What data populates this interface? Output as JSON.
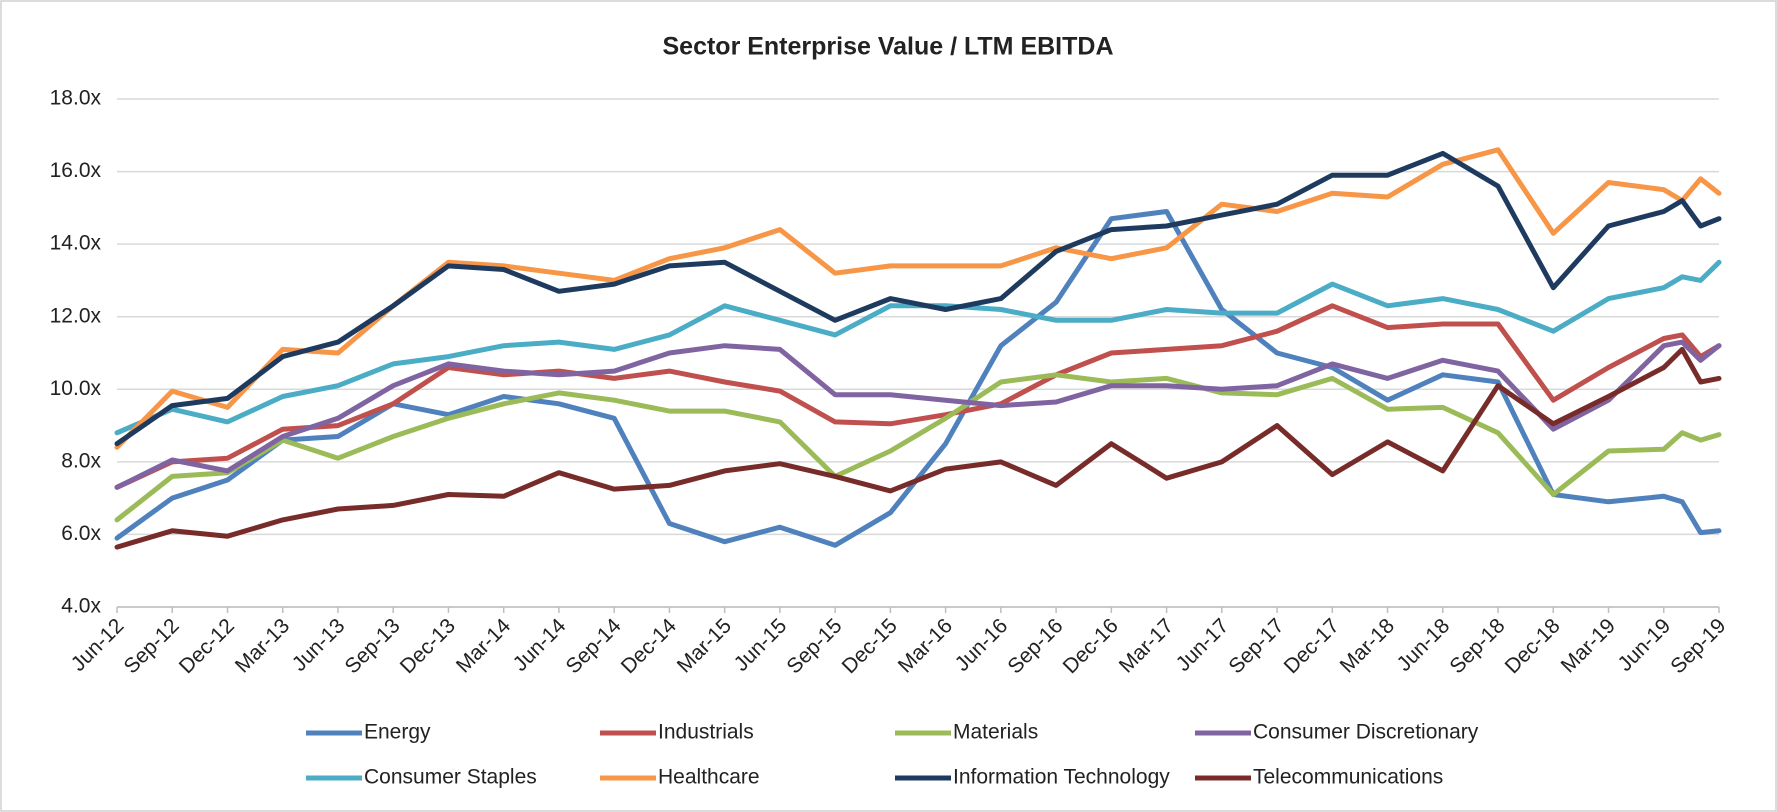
{
  "chart_data": {
    "type": "line",
    "title": "Sector Enterprise Value  / LTM EBITDA",
    "categories": [
      "Jun-12",
      "Sep-12",
      "Dec-12",
      "Mar-13",
      "Jun-13",
      "Sep-13",
      "Dec-13",
      "Mar-14",
      "Jun-14",
      "Sep-14",
      "Dec-14",
      "Mar-15",
      "Jun-15",
      "Sep-15",
      "Dec-15",
      "Mar-16",
      "Jun-16",
      "Sep-16",
      "Dec-16",
      "Mar-17",
      "Jun-17",
      "Sep-17",
      "Dec-17",
      "Mar-18",
      "Jun-18",
      "Sep-18",
      "Dec-18",
      "Mar-19",
      "Jun-19",
      null,
      null,
      "Sep-19"
    ],
    "series": [
      {
        "name": "Energy",
        "color": "#4f81bd",
        "values": [
          5.9,
          7.0,
          7.5,
          8.6,
          8.7,
          9.6,
          9.3,
          9.8,
          9.6,
          9.2,
          6.3,
          5.8,
          6.2,
          5.7,
          6.6,
          8.5,
          11.2,
          12.4,
          14.7,
          14.9,
          12.2,
          11.0,
          10.6,
          9.7,
          10.4,
          10.2,
          7.1,
          6.9,
          7.05,
          6.9,
          6.05,
          6.1
        ]
      },
      {
        "name": "Industrials",
        "color": "#c0504d",
        "values": [
          7.3,
          8.0,
          8.1,
          8.9,
          9.0,
          9.6,
          10.6,
          10.4,
          10.5,
          10.3,
          10.5,
          10.2,
          9.95,
          9.1,
          9.05,
          9.3,
          9.6,
          10.4,
          11.0,
          11.1,
          11.2,
          11.6,
          12.3,
          11.7,
          11.8,
          11.8,
          9.7,
          10.6,
          11.4,
          11.5,
          10.9,
          11.2
        ]
      },
      {
        "name": "Materials",
        "color": "#9bbb59",
        "values": [
          6.4,
          7.6,
          7.7,
          8.6,
          8.1,
          8.7,
          9.2,
          9.6,
          9.9,
          9.7,
          9.4,
          9.4,
          9.1,
          7.6,
          8.3,
          9.2,
          10.2,
          10.4,
          10.2,
          10.3,
          9.9,
          9.85,
          10.3,
          9.45,
          9.5,
          8.8,
          7.1,
          8.3,
          8.35,
          8.8,
          8.6,
          8.75
        ]
      },
      {
        "name": "Consumer Discretionary",
        "color": "#8064a2",
        "values": [
          7.3,
          8.05,
          7.75,
          8.7,
          9.2,
          10.1,
          10.7,
          10.5,
          10.4,
          10.5,
          11.0,
          11.2,
          11.1,
          9.85,
          9.85,
          9.7,
          9.55,
          9.65,
          10.1,
          10.1,
          10.0,
          10.1,
          10.7,
          10.3,
          10.8,
          10.5,
          8.9,
          9.7,
          11.2,
          11.3,
          10.8,
          11.2
        ]
      },
      {
        "name": "Consumer Staples",
        "color": "#4bacc6",
        "values": [
          8.8,
          9.45,
          9.1,
          9.8,
          10.1,
          10.7,
          10.9,
          11.2,
          11.3,
          11.1,
          11.5,
          12.3,
          11.9,
          11.5,
          12.3,
          12.3,
          12.2,
          11.9,
          11.9,
          12.2,
          12.1,
          12.1,
          12.9,
          12.3,
          12.5,
          12.2,
          11.6,
          12.5,
          12.8,
          13.1,
          13.0,
          13.5
        ]
      },
      {
        "name": "Healthcare",
        "color": "#f79646",
        "values": [
          8.4,
          9.95,
          9.5,
          11.1,
          11.0,
          12.3,
          13.5,
          13.4,
          13.2,
          13.0,
          13.6,
          13.9,
          14.4,
          13.2,
          13.4,
          13.4,
          13.4,
          13.9,
          13.6,
          13.9,
          15.1,
          14.9,
          15.4,
          15.3,
          16.2,
          16.6,
          14.3,
          15.7,
          15.5,
          15.2,
          15.8,
          15.4
        ]
      },
      {
        "name": "Information Technology",
        "color": "#1f3a5f",
        "values": [
          8.5,
          9.55,
          9.75,
          10.9,
          11.3,
          12.3,
          13.4,
          13.3,
          12.7,
          12.9,
          13.4,
          13.5,
          12.7,
          11.9,
          12.5,
          12.2,
          12.5,
          13.8,
          14.4,
          14.5,
          14.8,
          15.1,
          15.9,
          15.9,
          16.5,
          15.6,
          12.8,
          14.5,
          14.9,
          15.2,
          14.5,
          14.7
        ]
      },
      {
        "name": "Telecommunications",
        "color": "#772c2a",
        "values": [
          5.65,
          6.1,
          5.95,
          6.4,
          6.7,
          6.8,
          7.1,
          7.05,
          7.7,
          7.25,
          7.35,
          7.75,
          7.95,
          7.6,
          7.2,
          7.8,
          8.0,
          7.35,
          8.5,
          7.55,
          8.0,
          9.0,
          7.65,
          8.55,
          7.75,
          10.1,
          9.05,
          9.8,
          10.6,
          11.1,
          10.2,
          10.3
        ]
      }
    ],
    "ylim": [
      4,
      18
    ],
    "yticks": [
      {
        "value": 4,
        "label": "4.0x"
      },
      {
        "value": 6,
        "label": "6.0x"
      },
      {
        "value": 8,
        "label": "8.0x"
      },
      {
        "value": 10,
        "label": "10.0x"
      },
      {
        "value": 12,
        "label": "12.0x"
      },
      {
        "value": 14,
        "label": "14.0x"
      },
      {
        "value": 16,
        "label": "16.0x"
      },
      {
        "value": 18,
        "label": "18.0x"
      }
    ],
    "grid": true,
    "legend": "bottom"
  }
}
